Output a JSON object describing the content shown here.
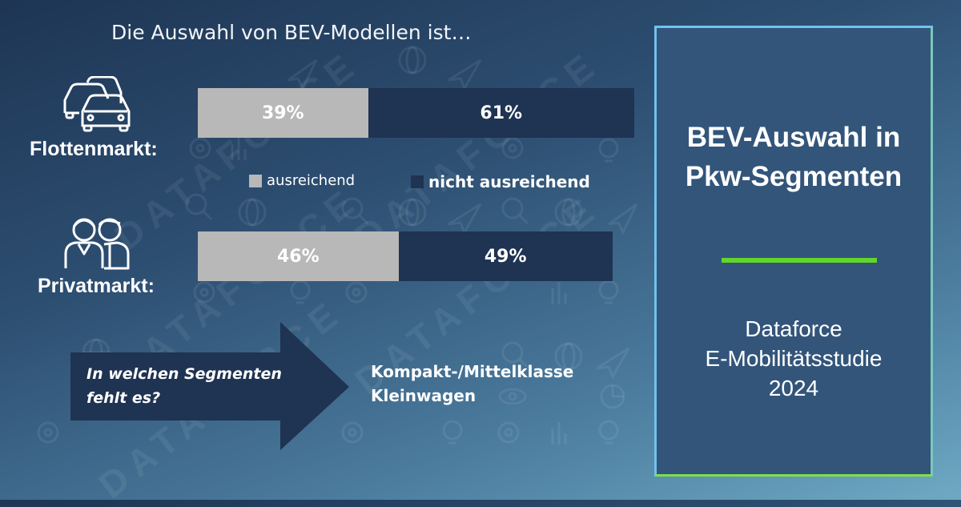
{
  "headline": "Die Auswahl von BEV-Modellen ist…",
  "colors": {
    "ausreichend": "#b8b8b8",
    "nicht_ausreichend": "#1f3352",
    "accent_green": "#62d62a",
    "panel_border": "#72c2ee"
  },
  "segments": {
    "fleet": {
      "label": "Flottenmarkt:",
      "icon": "cars-icon"
    },
    "private": {
      "label": "Privatmarkt:",
      "icon": "people-icon"
    }
  },
  "legend": {
    "ausreichend": "ausreichend",
    "nicht_ausreichend": "nicht ausreichend"
  },
  "chart_data": {
    "type": "bar",
    "orientation": "horizontal",
    "stacked": true,
    "title": "Die Auswahl von BEV-Modellen ist…",
    "categories": [
      "Flottenmarkt:",
      "Privatmarkt:"
    ],
    "series": [
      {
        "name": "ausreichend",
        "values": [
          39,
          46
        ],
        "labels": [
          "39%",
          "46%"
        ],
        "color": "#b8b8b8"
      },
      {
        "name": "nicht ausreichend",
        "values": [
          61,
          49
        ],
        "labels": [
          "61%",
          "49%"
        ],
        "color": "#1f3352"
      }
    ],
    "xlim": [
      0,
      100
    ],
    "grid": false,
    "legend_position": "between-bars"
  },
  "question": {
    "line1": "In welchen Segmenten",
    "line2": "fehlt es?"
  },
  "answers": {
    "line1": "Kompakt-/Mittelklasse",
    "line2": "Kleinwagen"
  },
  "panel": {
    "title_line1": "BEV-Auswahl in",
    "title_line2": "Pkw-Segmenten",
    "sub_line1": "Dataforce",
    "sub_line2": "E-Mobilitätsstudie",
    "sub_line3": "2024"
  },
  "watermark": "DATAFORCE"
}
